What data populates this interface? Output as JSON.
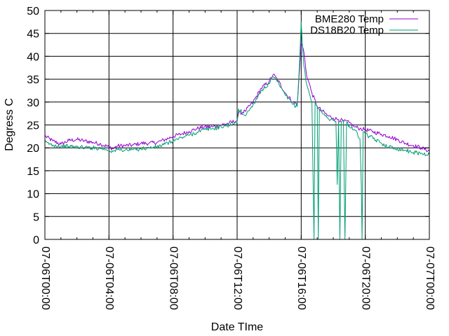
{
  "chart_data": {
    "type": "line",
    "xlabel": "Date  TIme",
    "ylabel": "Degress C",
    "ylim": [
      0,
      50
    ],
    "yticks": [
      0,
      5,
      10,
      15,
      20,
      25,
      30,
      35,
      40,
      45,
      50
    ],
    "xlim": [
      "07-06T00:00",
      "07-07T00:00"
    ],
    "xticks": [
      "07-06T00:00",
      "07-06T04:00",
      "07-06T08:00",
      "07-06T12:00",
      "07-06T16:00",
      "07-06T20:00",
      "07-07T00:00"
    ],
    "grid": true,
    "legend_position": "top-right",
    "series": [
      {
        "name": "BME280 Temp",
        "color": "#9400d3",
        "x": [
          "07-06T00:00",
          "07-06T00:30",
          "07-06T01:00",
          "07-06T01:30",
          "07-06T02:00",
          "07-06T02:30",
          "07-06T03:00",
          "07-06T03:30",
          "07-06T04:00",
          "07-06T04:15",
          "07-06T04:30",
          "07-06T05:00",
          "07-06T05:30",
          "07-06T06:00",
          "07-06T06:30",
          "07-06T07:00",
          "07-06T07:30",
          "07-06T08:00",
          "07-06T08:30",
          "07-06T09:00",
          "07-06T09:30",
          "07-06T10:00",
          "07-06T10:30",
          "07-06T11:00",
          "07-06T11:30",
          "07-06T12:00",
          "07-06T12:05",
          "07-06T12:30",
          "07-06T13:00",
          "07-06T13:30",
          "07-06T14:00",
          "07-06T14:15",
          "07-06T14:30",
          "07-06T15:00",
          "07-06T15:30",
          "07-06T15:45",
          "07-06T15:55",
          "07-06T16:00",
          "07-06T16:10",
          "07-06T16:20",
          "07-06T16:40",
          "07-06T17:00",
          "07-06T17:20",
          "07-06T17:40",
          "07-06T18:00",
          "07-06T18:20",
          "07-06T18:40",
          "07-06T19:00",
          "07-06T19:20",
          "07-06T19:40",
          "07-06T20:00",
          "07-06T20:30",
          "07-06T21:00",
          "07-06T21:30",
          "07-06T22:00",
          "07-06T22:30",
          "07-06T23:00",
          "07-06T23:30",
          "07-07T00:00"
        ],
        "y": [
          22.6,
          21.5,
          20.8,
          21.6,
          21.8,
          21.5,
          21.2,
          20.8,
          20.2,
          19.8,
          20.4,
          20.5,
          20.6,
          21.0,
          21.0,
          21.2,
          21.8,
          22.5,
          23.0,
          23.6,
          24.2,
          24.6,
          24.6,
          25.0,
          25.4,
          26.0,
          27.5,
          28.0,
          30.0,
          33.0,
          34.5,
          36.0,
          35.0,
          32.0,
          30.0,
          29.5,
          38.0,
          43.0,
          41.0,
          36.0,
          32.0,
          29.0,
          28.0,
          27.0,
          26.5,
          26.2,
          25.8,
          25.5,
          24.6,
          24.2,
          24.0,
          23.5,
          23.0,
          22.5,
          21.8,
          21.0,
          20.5,
          20.0,
          19.3
        ]
      },
      {
        "name": "DS18B20 Temp",
        "color": "#009e73",
        "x": [
          "07-06T00:00",
          "07-06T00:30",
          "07-06T01:00",
          "07-06T01:30",
          "07-06T02:00",
          "07-06T02:30",
          "07-06T03:00",
          "07-06T03:30",
          "07-06T04:00",
          "07-06T04:15",
          "07-06T04:30",
          "07-06T05:00",
          "07-06T05:30",
          "07-06T06:00",
          "07-06T06:30",
          "07-06T07:00",
          "07-06T07:30",
          "07-06T08:00",
          "07-06T08:30",
          "07-06T09:00",
          "07-06T09:30",
          "07-06T10:00",
          "07-06T10:30",
          "07-06T11:00",
          "07-06T11:30",
          "07-06T12:00",
          "07-06T12:05",
          "07-06T12:30",
          "07-06T13:00",
          "07-06T13:30",
          "07-06T14:00",
          "07-06T14:15",
          "07-06T14:30",
          "07-06T15:00",
          "07-06T15:30",
          "07-06T15:45",
          "07-06T15:55",
          "07-06T16:00",
          "07-06T16:05",
          "07-06T16:10",
          "07-06T16:20",
          "07-06T16:40",
          "07-06T16:48",
          "07-06T16:52",
          "07-06T17:00",
          "07-06T17:04",
          "07-06T17:08",
          "07-06T17:20",
          "07-06T17:40",
          "07-06T18:00",
          "07-06T18:10",
          "07-06T18:15",
          "07-06T18:20",
          "07-06T18:25",
          "07-06T18:30",
          "07-06T18:38",
          "07-06T18:44",
          "07-06T18:50",
          "07-06T19:00",
          "07-06T19:20",
          "07-06T19:40",
          "07-06T19:45",
          "07-06T19:48",
          "07-06T19:52",
          "07-06T20:00",
          "07-06T20:30",
          "07-06T21:00",
          "07-06T21:30",
          "07-06T22:00",
          "07-06T22:30",
          "07-06T23:00",
          "07-06T23:30",
          "07-07T00:00"
        ],
        "y": [
          21.2,
          20.6,
          20.4,
          20.3,
          20.2,
          20.1,
          20.0,
          19.9,
          19.5,
          19.2,
          19.6,
          19.5,
          19.6,
          19.8,
          20.0,
          20.2,
          20.8,
          21.5,
          22.2,
          22.8,
          23.4,
          24.0,
          24.2,
          24.6,
          25.0,
          25.5,
          28.5,
          27.0,
          29.5,
          32.5,
          34.0,
          35.5,
          34.5,
          31.5,
          29.5,
          29.0,
          40.0,
          47.5,
          42.0,
          38.0,
          34.0,
          30.0,
          0,
          30.0,
          29.0,
          0,
          28.5,
          27.5,
          26.5,
          26.0,
          25.8,
          12.0,
          25.8,
          0,
          25.6,
          26.0,
          0,
          25.5,
          24.8,
          24.0,
          22.0,
          12.0,
          0,
          23.5,
          23.0,
          22.0,
          21.0,
          20.2,
          19.8,
          19.5,
          19.0,
          18.8,
          18.5
        ]
      }
    ]
  }
}
